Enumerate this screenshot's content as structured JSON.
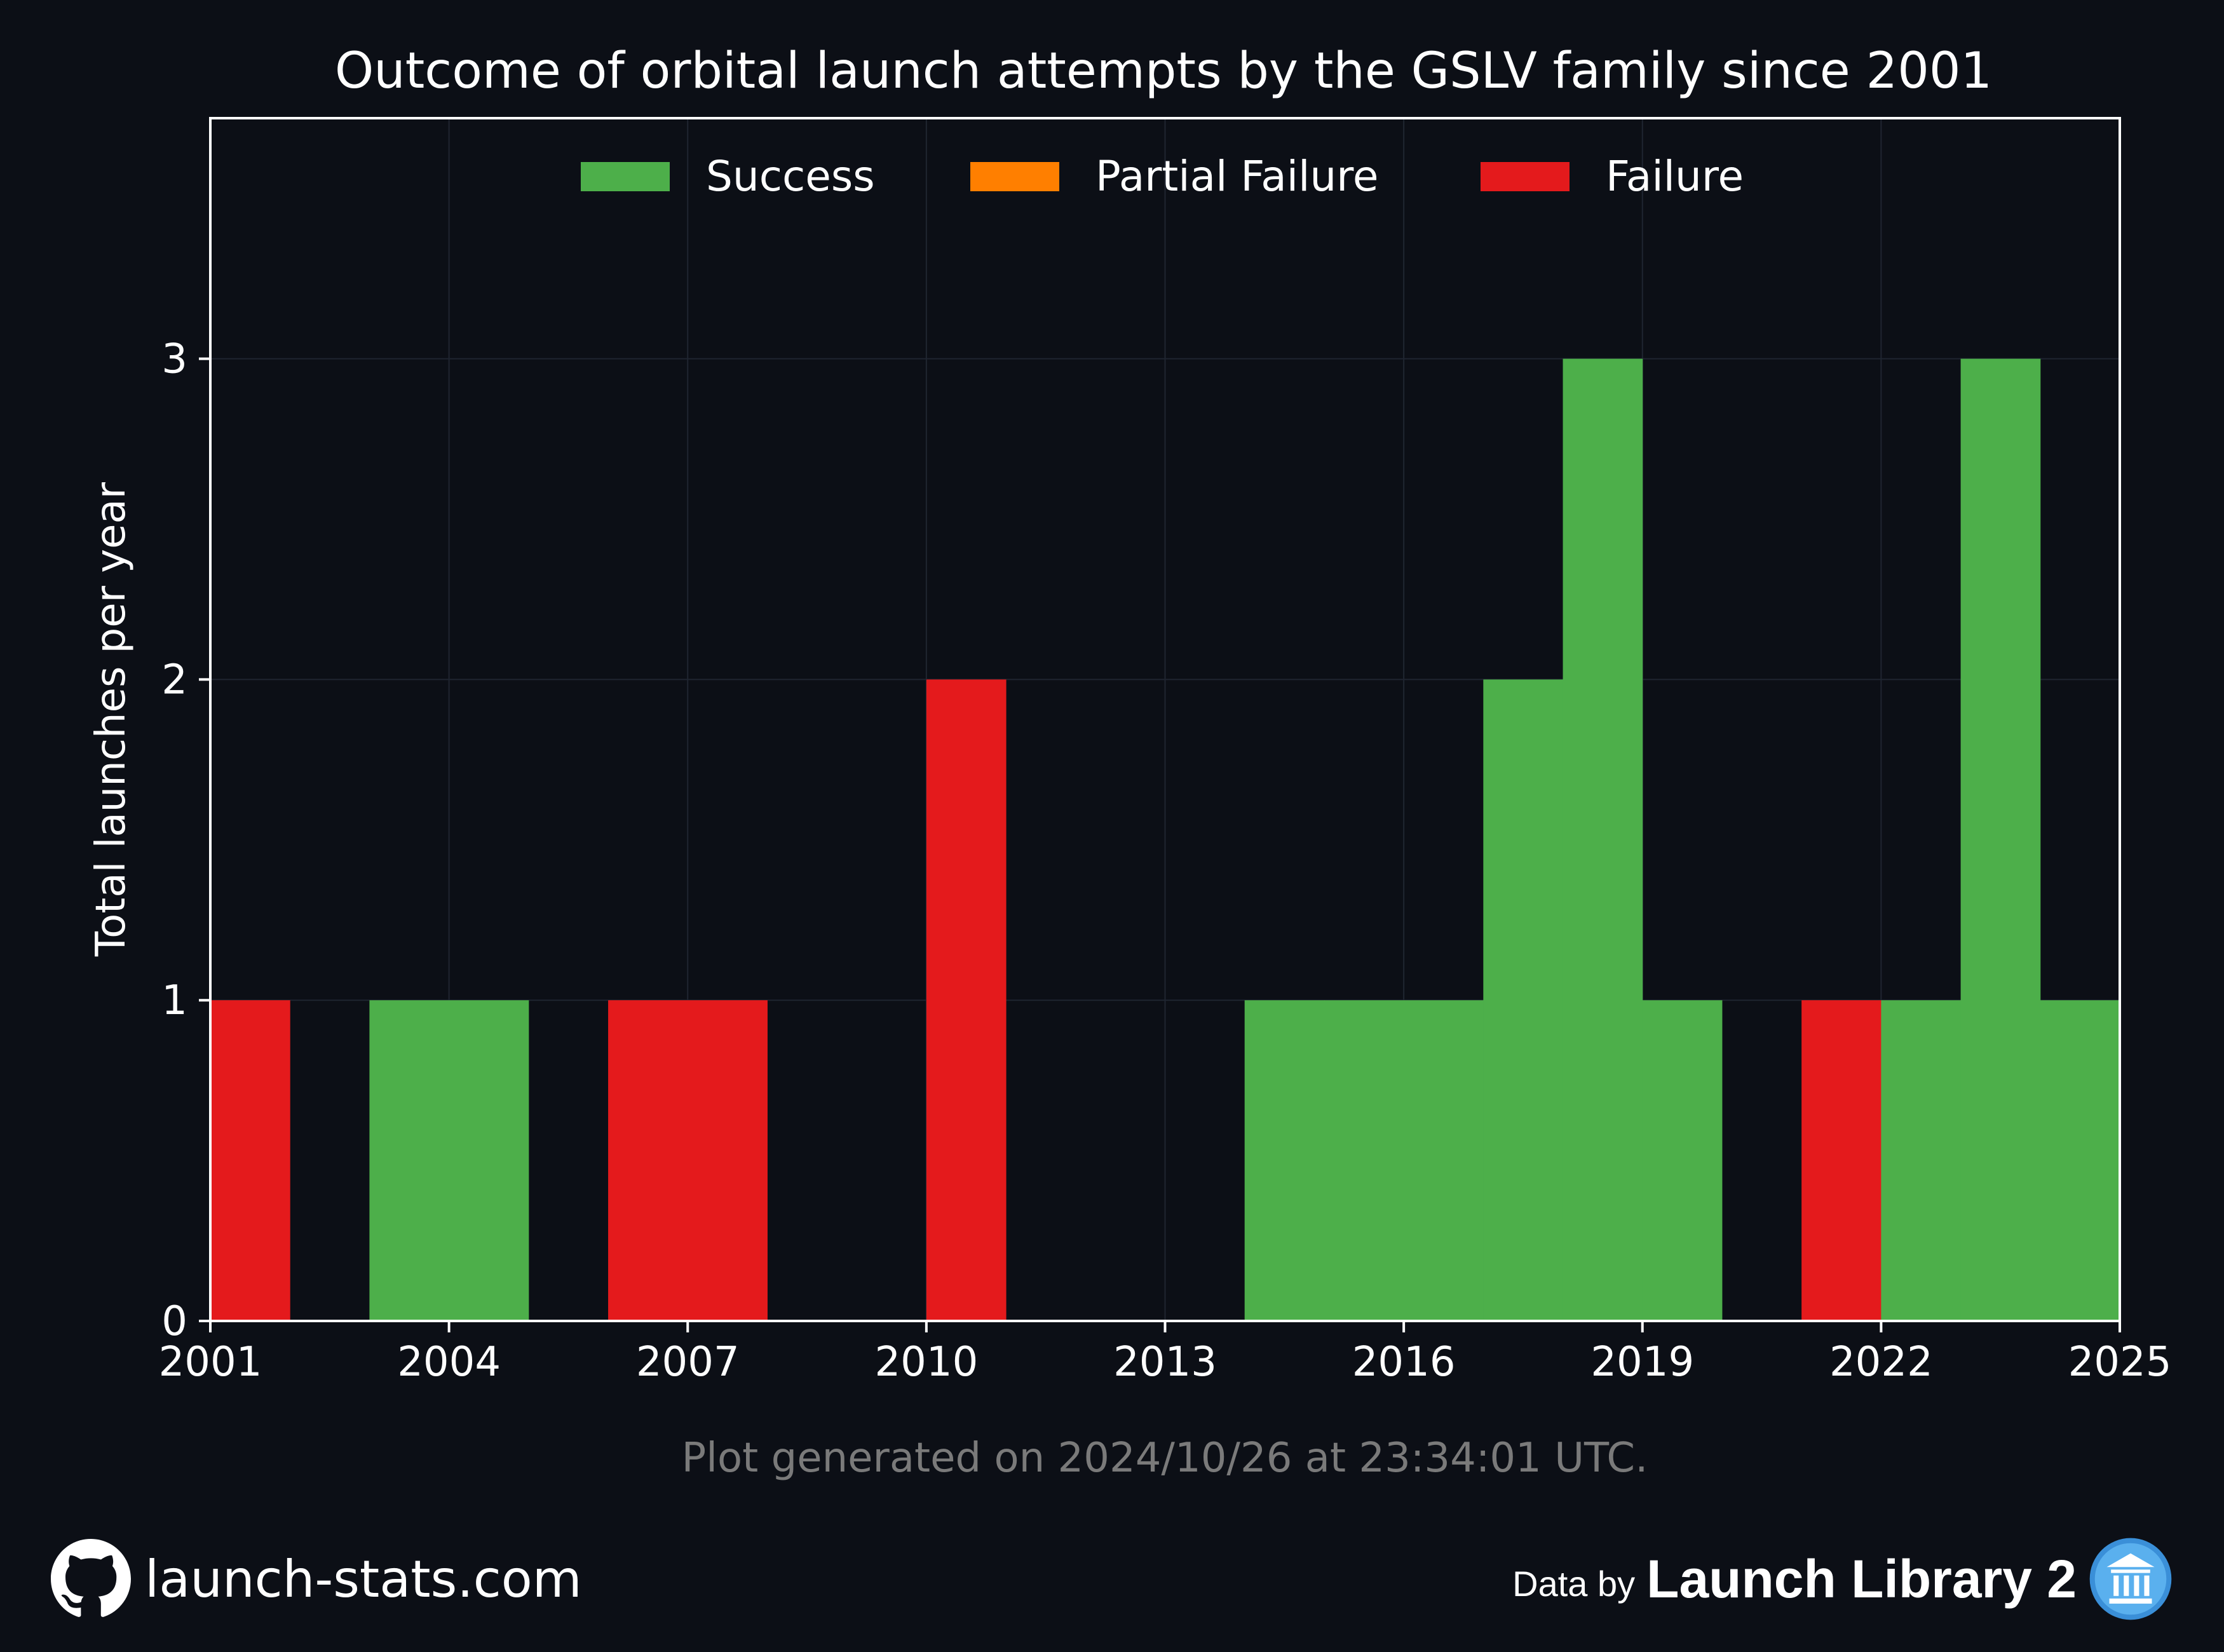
{
  "chart_data": {
    "type": "bar",
    "title": "Outcome of orbital launch attempts by the GSLV family since 2001",
    "xlabel": "",
    "ylabel": "Total launches per year",
    "xlim": [
      2001,
      2025
    ],
    "ylim": [
      0,
      3.75
    ],
    "xticks": [
      2001,
      2004,
      2007,
      2010,
      2013,
      2016,
      2019,
      2022,
      2025
    ],
    "yticks": [
      0,
      1,
      2,
      3
    ],
    "grid": true,
    "legend_position": "top-center",
    "stacked": true,
    "categories": [
      2001,
      2002,
      2003,
      2004,
      2005,
      2006,
      2007,
      2008,
      2009,
      2010,
      2011,
      2012,
      2013,
      2014,
      2015,
      2016,
      2017,
      2018,
      2019,
      2020,
      2021,
      2022,
      2023,
      2024
    ],
    "series": [
      {
        "name": "Success",
        "color": "#4daf4a",
        "values": [
          0,
          0,
          1,
          1,
          0,
          0,
          0,
          0,
          0,
          0,
          0,
          0,
          0,
          1,
          1,
          1,
          2,
          3,
          1,
          0,
          0,
          1,
          3,
          1
        ]
      },
      {
        "name": "Partial Failure",
        "color": "#ff7f00",
        "values": [
          0,
          0,
          0,
          0,
          0,
          0,
          0,
          0,
          0,
          0,
          0,
          0,
          0,
          0,
          0,
          0,
          0,
          0,
          0,
          0,
          0,
          0,
          0,
          0
        ]
      },
      {
        "name": "Failure",
        "color": "#e41a1c",
        "values": [
          1,
          0,
          0,
          0,
          0,
          1,
          1,
          0,
          0,
          2,
          0,
          0,
          0,
          0,
          0,
          0,
          0,
          0,
          0,
          0,
          1,
          0,
          0,
          0
        ]
      }
    ],
    "annotation": "Plot generated on 2024/10/26 at 23:34:01 UTC."
  },
  "footer": {
    "site": "launch-stats.com",
    "data_by": "Data by",
    "source": "Launch Library 2",
    "site_icon": "github-icon",
    "source_icon": "launch-library-icon"
  }
}
